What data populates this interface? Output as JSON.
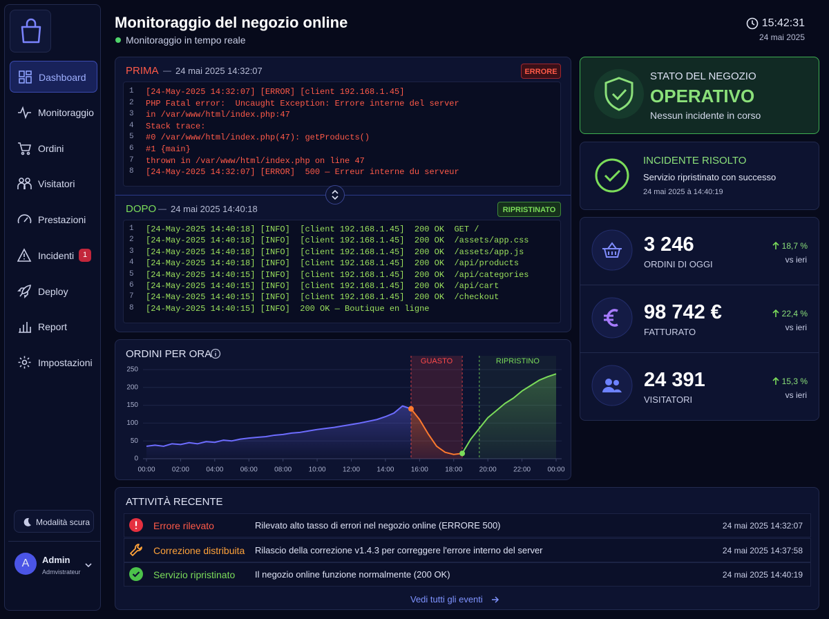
{
  "sidebar": {
    "nav": [
      {
        "label": "Dashboard"
      },
      {
        "label": "Monitoraggio"
      },
      {
        "label": "Ordini"
      },
      {
        "label": "Visitatori"
      },
      {
        "label": "Prestazioni"
      },
      {
        "label": "Incidenti",
        "badge": 1
      },
      {
        "label": "Deploy"
      },
      {
        "label": "Report"
      },
      {
        "label": "Impostazioni"
      }
    ],
    "active": 0,
    "dark_mode": "Modalità scura",
    "user": {
      "initial": "A",
      "name": "Admin",
      "role": "Admvistrateur"
    }
  },
  "header": {
    "title": "Monitoraggio del negozio online",
    "status": "Monitoraggio in tempo reale",
    "time": "15:42:31",
    "date": "24 mai 2025"
  },
  "log_before": {
    "label": "PRIMA",
    "separator": "—",
    "timestamp": "24 mai 2025 14:32:07",
    "badge": "ERRORE",
    "lines": [
      {
        "n": 1,
        "text": "[24-May-2025 14:32:07] [ERROR] [client 192.168.1.45]"
      },
      {
        "n": 2,
        "text": "PHP Fatal error:  Uncaught Exception: Errore interne del server"
      },
      {
        "n": 3,
        "text": "in /var/www/html/index.php:47"
      },
      {
        "n": 4,
        "text": "Stack trace:"
      },
      {
        "n": 5,
        "text": "#0 /var/www/html/index.php(47): getProducts()"
      },
      {
        "n": 6,
        "text": "#1 {main}"
      },
      {
        "n": 7,
        "text": "thrown in /var/www/html/index.php on line 47"
      },
      {
        "n": 8,
        "text": "[24-May-2025 14:32:07] [ERROR]  500 — Erreur interne du serveur"
      }
    ]
  },
  "log_after": {
    "label": "DOPO",
    "separator": "—",
    "timestamp": "24 mai 2025 14:40:18",
    "badge": "RIPRISTINATO",
    "lines": [
      {
        "n": 1,
        "text": "[24-May-2025 14:40:18] [INFO]  [client 192.168.1.45]  200 OK  GET /"
      },
      {
        "n": 2,
        "text": "[24-May-2025 14:40:18] [INFO]  [client 192.168.1.45]  200 OK  /assets/app.css"
      },
      {
        "n": 3,
        "text": "[24-May-2025 14:40:18] [INFO]  [client 192.168.1.45]  200 OK  /assets/app.js"
      },
      {
        "n": 4,
        "text": "[24-May-2025 14:40:18] [INFO]  [client 192.168.1.45]  200 OK  /api/products"
      },
      {
        "n": 5,
        "text": "[24-May-2025 14:40:15] [INFO]  [client 192.168.1.45]  200 OK  /api/categories"
      },
      {
        "n": 6,
        "text": "[24-May-2025 14:40:15] [INFO]  [client 192.168.1.45]  200 OK  /api/cart"
      },
      {
        "n": 7,
        "text": "[24-May-2025 14:40:15] [INFO]  [client 192.168.1.45]  200 OK  /checkout"
      },
      {
        "n": 8,
        "text": "[24-May-2025 14:40:15] [INFO]  200 OK — Boutique en ligne"
      }
    ]
  },
  "chart_data": {
    "type": "line",
    "title": "ORDINI PER ORA",
    "x": [
      0,
      0.5,
      1,
      1.5,
      2,
      2.5,
      3,
      3.5,
      4,
      4.5,
      5,
      5.5,
      6,
      6.5,
      7,
      7.5,
      8,
      8.5,
      9,
      9.5,
      10,
      10.5,
      11,
      11.5,
      12,
      12.5,
      13,
      13.5,
      14,
      14.5,
      15,
      15.5,
      16,
      16.5,
      17,
      17.5,
      18,
      18.5,
      19,
      19.5,
      20,
      20.5,
      21,
      21.5,
      22,
      22.5,
      23,
      23.5,
      24
    ],
    "series": [
      {
        "color": "#6d6cff",
        "values": [
          35,
          38,
          35,
          42,
          40,
          45,
          42,
          48,
          46,
          52,
          50,
          55,
          58,
          60,
          62,
          66,
          68,
          72,
          74,
          78,
          82,
          85,
          88,
          92,
          96,
          100,
          105,
          110,
          118,
          128,
          148,
          140,
          null,
          null,
          null,
          null,
          null,
          null,
          null,
          null,
          null,
          null,
          null,
          null,
          null,
          null,
          null,
          null,
          null
        ]
      },
      {
        "color": "#ff7a2e",
        "values": [
          null,
          null,
          null,
          null,
          null,
          null,
          null,
          null,
          null,
          null,
          null,
          null,
          null,
          null,
          null,
          null,
          null,
          null,
          null,
          null,
          null,
          null,
          null,
          null,
          null,
          null,
          null,
          null,
          null,
          null,
          null,
          140,
          110,
          70,
          35,
          18,
          12,
          15,
          null,
          null,
          null,
          null,
          null,
          null,
          null,
          null,
          null,
          null,
          null
        ]
      },
      {
        "color": "#7bdc5a",
        "values": [
          null,
          null,
          null,
          null,
          null,
          null,
          null,
          null,
          null,
          null,
          null,
          null,
          null,
          null,
          null,
          null,
          null,
          null,
          null,
          null,
          null,
          null,
          null,
          null,
          null,
          null,
          null,
          null,
          null,
          null,
          null,
          null,
          null,
          null,
          null,
          null,
          null,
          15,
          55,
          85,
          115,
          135,
          155,
          170,
          190,
          205,
          220,
          230,
          238
        ]
      }
    ],
    "xlim": [
      0,
      24
    ],
    "xticks": [
      {
        "value": 0,
        "label": "00:00"
      },
      {
        "value": 2,
        "label": "02:00"
      },
      {
        "value": 4,
        "label": "04:00"
      },
      {
        "value": 6,
        "label": "06:00"
      },
      {
        "value": 8,
        "label": "08:00"
      },
      {
        "value": 10,
        "label": "10:00"
      },
      {
        "value": 12,
        "label": "12:00"
      },
      {
        "value": 14,
        "label": "14:00"
      },
      {
        "value": 16,
        "label": "16:00"
      },
      {
        "value": 18,
        "label": "18:00"
      },
      {
        "value": 20,
        "label": "20:00"
      },
      {
        "value": 22,
        "label": "22:00"
      },
      {
        "value": 24,
        "label": "00:00"
      }
    ],
    "ylim": [
      0,
      250
    ],
    "yticks": [
      0,
      50,
      100,
      150,
      200,
      250
    ],
    "grid": true,
    "annotations": [
      {
        "label": "GUASTO",
        "start": 15.5,
        "end": 18.5,
        "color": "#ff4a4a"
      },
      {
        "label": "RIPRISTINO",
        "start": 19.5,
        "end": 24,
        "color": "#7bdc5a"
      }
    ]
  },
  "store_status": {
    "title": "STATO DEL NEGOZIO",
    "value": "OPERATIVO",
    "note": "Nessun incidente in corso"
  },
  "incident": {
    "title": "INCIDENTE RISOLTO",
    "text": "Servizio ripristinato con successo",
    "time": "24 mai 2025 à 14:40:19"
  },
  "kpis": [
    {
      "value": "3 246",
      "label": "ORDINI DI OGGI",
      "change": "18,7 %",
      "compare": "vs ieri"
    },
    {
      "value": "98 742 €",
      "label": "FATTURATO",
      "change": "22,4 %",
      "compare": "vs ieri"
    },
    {
      "value": "24 391",
      "label": "VISITATORI",
      "change": "15,3 %",
      "compare": "vs ieri"
    }
  ],
  "activity": {
    "title": "ATTIVITÀ RECENTE",
    "rows": [
      {
        "title": "Errore rilevato",
        "text": "Rilevato alto tasso di errori nel negozio online (ERRORE 500)",
        "time": "24 mai 2025 14:32:07"
      },
      {
        "title": "Correzione distribuita",
        "text": "Rilascio della correzione v1.4.3 per correggere l'errore interno del server",
        "time": "24 mai 2025 14:37:58"
      },
      {
        "title": "Servizio ripristinato",
        "text": "Il negozio online funzione normalmente (200 OK)",
        "time": "24 mai 2025 14:40:19"
      }
    ],
    "link": "Vedi tutti gli eventi"
  }
}
